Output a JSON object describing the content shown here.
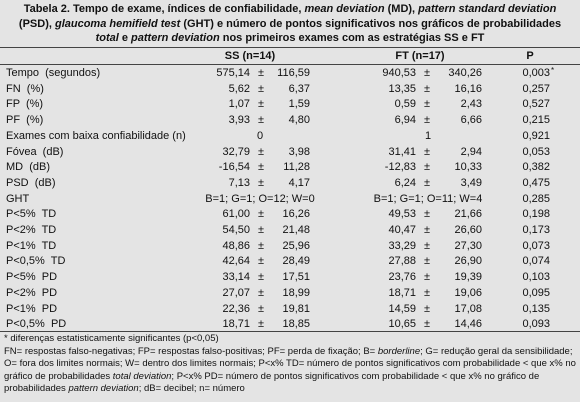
{
  "caption": {
    "segments": [
      {
        "text": "Tabela 2. Tempo de exame, índices de confiabilidade, ",
        "italic": false
      },
      {
        "text": "mean deviation",
        "italic": true
      },
      {
        "text": " (MD), ",
        "italic": false
      },
      {
        "text": "pattern standard deviation",
        "italic": true
      },
      {
        "text": " (PSD), ",
        "italic": false
      },
      {
        "text": "glaucoma hemifield test",
        "italic": true
      },
      {
        "text": " (GHT) e número de pontos significativos nos gráficos de probabilidades ",
        "italic": false
      },
      {
        "text": "total",
        "italic": true
      },
      {
        "text": " e ",
        "italic": false
      },
      {
        "text": "pattern deviation",
        "italic": true
      },
      {
        "text": " nos primeiros exames com as estratégias SS e FT",
        "italic": false
      }
    ]
  },
  "table": {
    "header": [
      "SS (n=14)",
      "FT (n=17)",
      "P"
    ],
    "pm": "±",
    "rows": [
      {
        "label": "Tempo  (segundos)",
        "ss": [
          "575,14",
          "116,59"
        ],
        "ft": [
          "940,53",
          "340,26"
        ],
        "p": "0,003",
        "marker": "*"
      },
      {
        "label": "FN  (%)",
        "ss": [
          "5,62",
          "6,37"
        ],
        "ft": [
          "13,35",
          "16,16"
        ],
        "p": "0,257"
      },
      {
        "label": "FP  (%)",
        "ss": [
          "1,07",
          "1,59"
        ],
        "ft": [
          "0,59",
          "2,43"
        ],
        "p": "0,527"
      },
      {
        "label": "PF  (%)",
        "ss": [
          "3,93",
          "4,80"
        ],
        "ft": [
          "6,94",
          "6,66"
        ],
        "p": "0,215"
      },
      {
        "label": "Exames com baixa confiabilidade (n)",
        "ss": [
          "0"
        ],
        "ft": [
          "1"
        ],
        "p": "0,921"
      },
      {
        "label": "Fóvea  (dB)",
        "ss": [
          "32,79",
          "3,98"
        ],
        "ft": [
          "31,41",
          "2,94"
        ],
        "p": "0,053"
      },
      {
        "label": "MD  (dB)",
        "ss": [
          "-16,54",
          "11,28"
        ],
        "ft": [
          "-12,83",
          "10,33"
        ],
        "p": "0,382"
      },
      {
        "label": "PSD  (dB)",
        "ss": [
          "7,13",
          "4,17"
        ],
        "ft": [
          "6,24",
          "3,49"
        ],
        "p": "0,475"
      },
      {
        "label": "GHT",
        "ss": [
          "B=1; G=1; O=12; W=0"
        ],
        "ft": [
          "B=1; G=1; O=11; W=4"
        ],
        "p": "0,285"
      },
      {
        "label": "P<5%  TD",
        "ss": [
          "61,00",
          "16,26"
        ],
        "ft": [
          "49,53",
          "21,66"
        ],
        "p": "0,198"
      },
      {
        "label": "P<2%  TD",
        "ss": [
          "54,50",
          "21,48"
        ],
        "ft": [
          "40,47",
          "26,60"
        ],
        "p": "0,173"
      },
      {
        "label": "P<1%  TD",
        "ss": [
          "48,86",
          "25,96"
        ],
        "ft": [
          "33,29",
          "27,30"
        ],
        "p": "0,073"
      },
      {
        "label": "P<0,5%  TD",
        "ss": [
          "42,64",
          "28,49"
        ],
        "ft": [
          "27,88",
          "26,90"
        ],
        "p": "0,074"
      },
      {
        "label": "P<5%  PD",
        "ss": [
          "33,14",
          "17,51"
        ],
        "ft": [
          "23,76",
          "19,39"
        ],
        "p": "0,103"
      },
      {
        "label": "P<2%  PD",
        "ss": [
          "27,07",
          "18,99"
        ],
        "ft": [
          "18,71",
          "19,06"
        ],
        "p": "0,095"
      },
      {
        "label": "P<1%  PD",
        "ss": [
          "22,36",
          "19,81"
        ],
        "ft": [
          "14,59",
          "17,08"
        ],
        "p": "0,135"
      },
      {
        "label": "P<0,5%  PD",
        "ss": [
          "18,71",
          "18,85"
        ],
        "ft": [
          "10,65",
          "14,46"
        ],
        "p": "0,093"
      }
    ]
  },
  "notes": [
    {
      "segments": [
        {
          "text": "*",
          "italic": false
        },
        {
          "text": " diferenças estatisticamente significantes (p<0,05)",
          "italic": false
        }
      ]
    },
    {
      "segments": [
        {
          "text": "FN= respostas falso-negativas; FP= respostas falso-positivas; PF= perda de fixação; B= ",
          "italic": false
        },
        {
          "text": "borderline",
          "italic": true
        },
        {
          "text": "; G= redução geral da sensibilidade; O= fora dos limites normais; W= dentro dos limites normais; P<x% TD= número de pontos significativos com probabilidade < que x% no gráfico de probabilidades ",
          "italic": false
        },
        {
          "text": "total deviation",
          "italic": true
        },
        {
          "text": "; P<x% PD= número de pontos significativos com probabilidade < que x% no gráfico de probabilidades ",
          "italic": false
        },
        {
          "text": "pattern deviation",
          "italic": true
        },
        {
          "text": "; dB= decibel; n= número",
          "italic": false
        }
      ]
    }
  ]
}
